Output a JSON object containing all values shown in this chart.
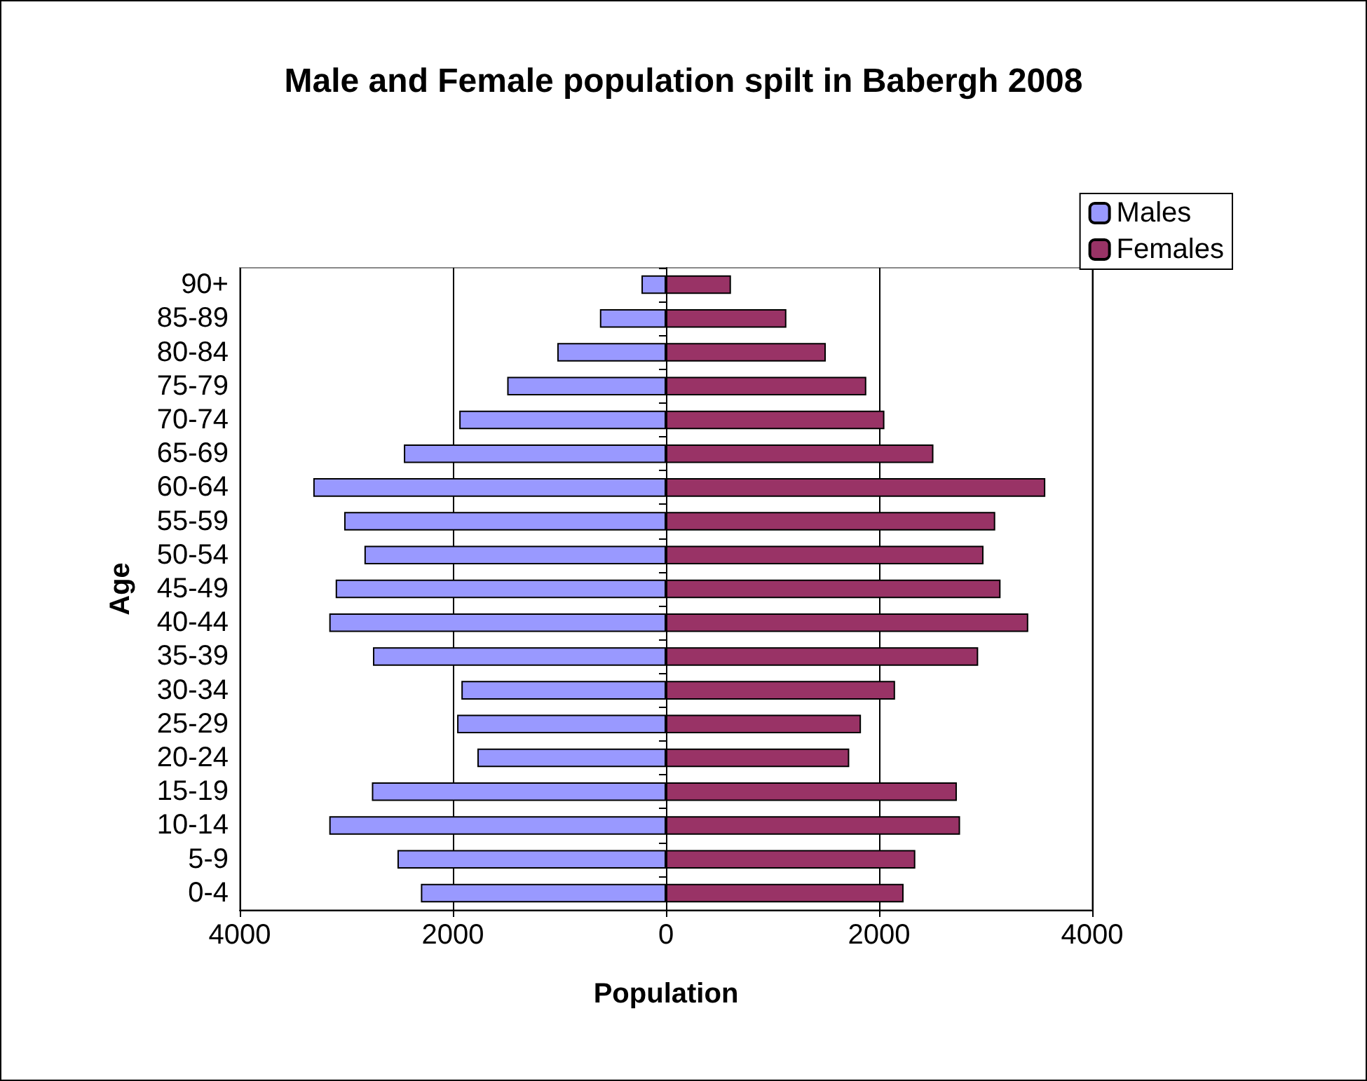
{
  "chart_data": {
    "type": "bar",
    "orientation": "horizontal",
    "stacked": true,
    "title": "Male and Female population spilt in Babergh 2008",
    "xlabel": "Population",
    "ylabel": "Age",
    "categories": [
      "90+",
      "85-89",
      "80-84",
      "75-79",
      "70-74",
      "65-69",
      "60-64",
      "55-59",
      "50-54",
      "45-49",
      "40-44",
      "35-39",
      "30-34",
      "25-29",
      "20-24",
      "15-19",
      "10-14",
      "5-9",
      "0-4"
    ],
    "series": [
      {
        "name": "Males",
        "color": "#9999ff",
        "values": [
          -230,
          -620,
          -1020,
          -1490,
          -1940,
          -2460,
          -3310,
          -3020,
          -2830,
          -3100,
          -3160,
          -2750,
          -1920,
          -1960,
          -1770,
          -2760,
          -3160,
          -2520,
          -2300
        ]
      },
      {
        "name": "Females",
        "color": "#993366",
        "values": [
          610,
          1130,
          1500,
          1880,
          2050,
          2510,
          3560,
          3090,
          2980,
          3140,
          3400,
          2930,
          2150,
          1830,
          1720,
          2730,
          2760,
          2340,
          2230
        ]
      }
    ],
    "xlim": [
      -4000,
      4000
    ],
    "xticks": [
      {
        "value": -4000,
        "label": "4000"
      },
      {
        "value": -2000,
        "label": "2000"
      },
      0,
      2000,
      4000
    ],
    "grid": "x",
    "legend": "top right"
  }
}
